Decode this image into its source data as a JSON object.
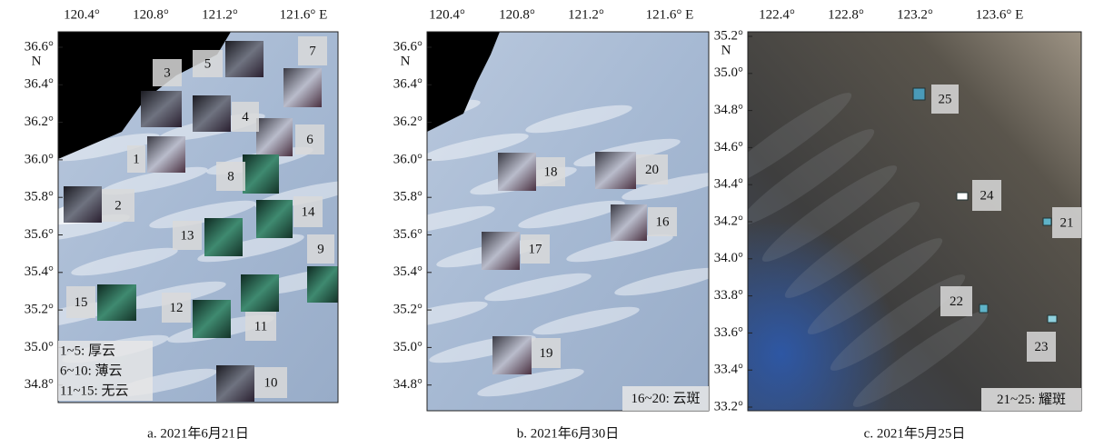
{
  "panels": [
    {
      "caption": "a. 2021年6月21日",
      "lon_ticks": [
        "120.4°",
        "120.8°",
        "121.2°",
        "121.6° E"
      ],
      "lat_ticks": [
        "36.6°",
        "36.4°",
        "36.2°",
        "36.0°",
        "35.8°",
        "35.6°",
        "35.4°",
        "35.2°",
        "35.0°",
        "34.8°"
      ],
      "lat_unit": "N",
      "legend": [
        "1~5: 厚云",
        "6~10: 薄云",
        "11~15: 无云"
      ],
      "patches": [
        "1",
        "2",
        "3",
        "4",
        "5",
        "6",
        "7",
        "8",
        "9",
        "10",
        "11",
        "12",
        "13",
        "14",
        "15"
      ]
    },
    {
      "caption": "b. 2021年6月30日",
      "lon_ticks": [
        "120.4°",
        "120.8°",
        "121.2°",
        "121.6° E"
      ],
      "lat_ticks": [
        "36.6°",
        "36.4°",
        "36.2°",
        "36.0°",
        "35.8°",
        "35.6°",
        "35.4°",
        "35.2°",
        "35.0°",
        "34.8°"
      ],
      "lat_unit": "N",
      "legend": [
        "16~20: 云斑"
      ],
      "patches": [
        "16",
        "17",
        "18",
        "19",
        "20"
      ]
    },
    {
      "caption": "c. 2021年5月25日",
      "lon_ticks": [
        "122.4°",
        "122.8°",
        "123.2°",
        "123.6° E"
      ],
      "lat_ticks": [
        "35.2°",
        "35.0°",
        "34.8°",
        "34.6°",
        "34.4°",
        "34.2°",
        "34.0°",
        "33.8°",
        "33.6°",
        "33.4°",
        "33.2°"
      ],
      "lat_unit": "N",
      "legend": [
        "21~25: 耀斑"
      ],
      "patches": [
        "21",
        "22",
        "23",
        "24",
        "25"
      ]
    }
  ]
}
